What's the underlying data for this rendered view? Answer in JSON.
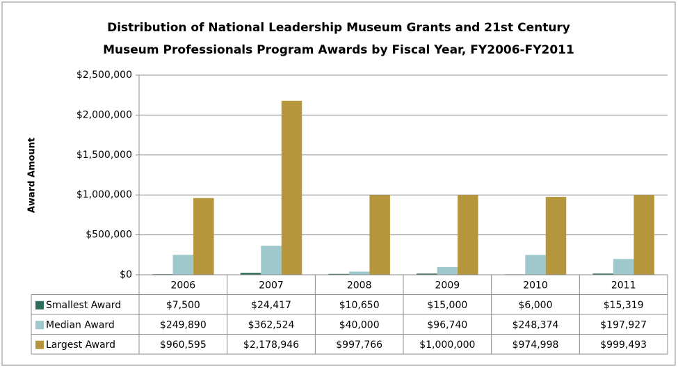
{
  "chart_data": {
    "type": "bar",
    "title": [
      "Distribution of National Leadership Museum Grants and 21st Century",
      "Museum Professionals Program Awards by Fiscal Year, FY2006-FY2011"
    ],
    "y_label": "Award Amount",
    "categories": [
      "2006",
      "2007",
      "2008",
      "2009",
      "2010",
      "2011"
    ],
    "series": [
      {
        "name": "Smallest Award",
        "color": "#2e6e5c",
        "values": [
          7500,
          24417,
          10650,
          15000,
          6000,
          15319
        ],
        "value_labels": [
          "$7,500",
          "$24,417",
          "$10,650",
          "$15,000",
          "$6,000",
          "$15,319"
        ]
      },
      {
        "name": "Median Award",
        "color": "#9ec8cb",
        "values": [
          249890,
          362524,
          40000,
          96740,
          248374,
          197927
        ],
        "value_labels": [
          "$249,890",
          "$362,524",
          "$40,000",
          "$96,740",
          "$248,374",
          "$197,927"
        ]
      },
      {
        "name": "Largest Award",
        "color": "#b5963c",
        "values": [
          960595,
          2178946,
          997766,
          1000000,
          974998,
          999493
        ],
        "value_labels": [
          "$960,595",
          "$2,178,946",
          "$997,766",
          "$1,000,000",
          "$974,998",
          "$999,493"
        ]
      }
    ],
    "ylim": [
      0,
      2500000
    ],
    "yticks": [
      {
        "value": 0,
        "label": "$0"
      },
      {
        "value": 500000,
        "label": "$500,000"
      },
      {
        "value": 1000000,
        "label": "$1,000,000"
      },
      {
        "value": 1500000,
        "label": "$1,500,000"
      },
      {
        "value": 2000000,
        "label": "$2,000,000"
      },
      {
        "value": 2500000,
        "label": "$2,500,000"
      }
    ],
    "grid": true
  }
}
